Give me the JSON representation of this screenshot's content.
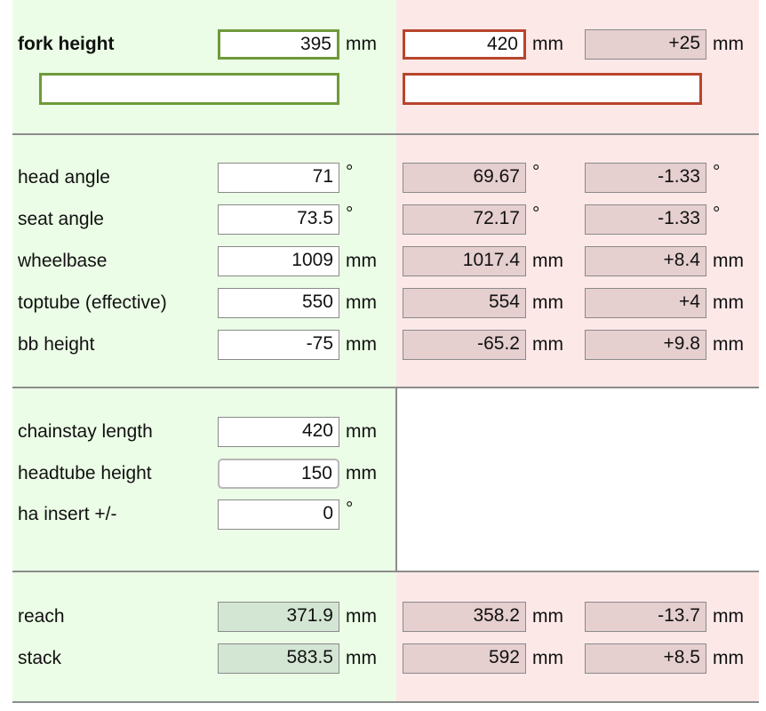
{
  "fork": {
    "label": "fork height",
    "base": "395",
    "base_unit": "mm",
    "new": "420",
    "new_unit": "mm",
    "diff": "+25",
    "diff_unit": "mm"
  },
  "geometry": [
    {
      "label": "head angle",
      "base": "71",
      "base_unit": "°",
      "new": "69.67",
      "new_unit": "°",
      "diff": "-1.33",
      "diff_unit": "°"
    },
    {
      "label": "seat angle",
      "base": "73.5",
      "base_unit": "°",
      "new": "72.17",
      "new_unit": "°",
      "diff": "-1.33",
      "diff_unit": "°"
    },
    {
      "label": "wheelbase",
      "base": "1009",
      "base_unit": "mm",
      "new": "1017.4",
      "new_unit": "mm",
      "diff": "+8.4",
      "diff_unit": "mm"
    },
    {
      "label": "toptube (effective)",
      "base": "550",
      "base_unit": "mm",
      "new": "554",
      "new_unit": "mm",
      "diff": "+4",
      "diff_unit": "mm"
    },
    {
      "label": "bb height",
      "base": "-75",
      "base_unit": "mm",
      "new": "-65.2",
      "new_unit": "mm",
      "diff": "+9.8",
      "diff_unit": "mm"
    }
  ],
  "frame": [
    {
      "label": "chainstay length",
      "base": "420",
      "base_unit": "mm"
    },
    {
      "label": "headtube height",
      "base": "150",
      "base_unit": "mm"
    },
    {
      "label": "ha insert +/-",
      "base": "0",
      "base_unit": "°"
    }
  ],
  "results": [
    {
      "label": "reach",
      "base": "371.9",
      "base_unit": "mm",
      "new": "358.2",
      "new_unit": "mm",
      "diff": "-13.7",
      "diff_unit": "mm"
    },
    {
      "label": "stack",
      "base": "583.5",
      "base_unit": "mm",
      "new": "592",
      "new_unit": "mm",
      "diff": "+8.5",
      "diff_unit": "mm"
    }
  ]
}
